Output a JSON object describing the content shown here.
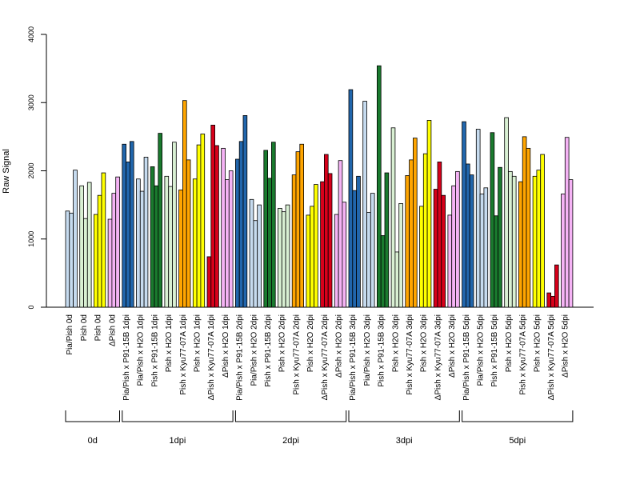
{
  "chart_data": {
    "type": "bar",
    "ylabel": "Raw Signal",
    "ylim": [
      0,
      4000
    ],
    "yticks": [
      0,
      1000,
      2000,
      3000,
      4000
    ],
    "groups": [
      "0d",
      "1dpi",
      "2dpi",
      "3dpi",
      "5dpi"
    ],
    "colors": {
      "Pia/Pish": "#c6dbef",
      "Pia/Pish x P91-15B": "#2166ac",
      "Pia/Pish x H2O": "#c6dbef",
      "Pish x P91-15B": "#1a7a2e",
      "Pish x H2O": "#d9f0d3",
      "Pish x Kyu77-07A": "#ffa500",
      "Pish": "#ffff00",
      "ΔPish x Kyu77-07A": "#d7001a",
      "ΔPish x H2O": "#f5b3f5",
      "Pish 0d": "#d9f0d3"
    },
    "categories": [
      {
        "label": "Pia/Pish 0d",
        "group": "0d",
        "color": "#c6dbef",
        "values": [
          1410,
          1380,
          2010
        ]
      },
      {
        "label": "Pish 0d",
        "group": "0d",
        "color": "#d9f0d3",
        "values": [
          1780,
          1300,
          1830
        ]
      },
      {
        "label": "Pish 0d",
        "group": "0d",
        "color": "#ffff00",
        "values": [
          1360,
          1640,
          1970
        ]
      },
      {
        "label": "ΔPish 0d",
        "group": "0d",
        "color": "#f5b3f5",
        "values": [
          1290,
          1670,
          1910
        ]
      },
      {
        "label": "Pia/Pish x P91-15B 1dpi",
        "group": "1dpi",
        "color": "#2166ac",
        "values": [
          2390,
          2130,
          2430
        ]
      },
      {
        "label": "Pia/Pish x H2O 1dpi",
        "group": "1dpi",
        "color": "#c6dbef",
        "values": [
          1880,
          1700,
          2200
        ]
      },
      {
        "label": "Pish x P91-15B 1dpi",
        "group": "1dpi",
        "color": "#1a7a2e",
        "values": [
          2060,
          1780,
          2550
        ]
      },
      {
        "label": "Pish x H2O 1dpi",
        "group": "1dpi",
        "color": "#d9f0d3",
        "values": [
          1920,
          1770,
          2420
        ]
      },
      {
        "label": "Pish x Kyu77-07A 1dpi",
        "group": "1dpi",
        "color": "#ffa500",
        "values": [
          1720,
          3030,
          2160
        ]
      },
      {
        "label": "Pish x H2O 1dpi",
        "group": "1dpi",
        "color": "#ffff00",
        "values": [
          1880,
          2380,
          2540
        ]
      },
      {
        "label": "ΔPish x Kyu77-07A 1dpi",
        "group": "1dpi",
        "color": "#d7001a",
        "values": [
          740,
          2670,
          2370
        ]
      },
      {
        "label": "ΔPish x H2O 1dpi",
        "group": "1dpi",
        "color": "#f5b3f5",
        "values": [
          2330,
          1870,
          2000
        ]
      },
      {
        "label": "Pia/Pish x P91-15B 2dpi",
        "group": "2dpi",
        "color": "#2166ac",
        "values": [
          2170,
          2430,
          2810
        ]
      },
      {
        "label": "Pia/Pish x H2O 2dpi",
        "group": "2dpi",
        "color": "#c6dbef",
        "values": [
          1580,
          1270,
          1500
        ]
      },
      {
        "label": "Pish x P91-15B 2dpi",
        "group": "2dpi",
        "color": "#1a7a2e",
        "values": [
          2300,
          1890,
          2420
        ]
      },
      {
        "label": "Pish x H2O 2dpi",
        "group": "2dpi",
        "color": "#d9f0d3",
        "values": [
          1450,
          1400,
          1500
        ]
      },
      {
        "label": "Pish x Kyu77-07A 2dpi",
        "group": "2dpi",
        "color": "#ffa500",
        "values": [
          1940,
          2280,
          2390
        ]
      },
      {
        "label": "Pish x H2O 2dpi",
        "group": "2dpi",
        "color": "#ffff00",
        "values": [
          1350,
          1480,
          1800
        ]
      },
      {
        "label": "ΔPish x Kyu77-07A 2dpi",
        "group": "2dpi",
        "color": "#d7001a",
        "values": [
          1840,
          2240,
          1960
        ]
      },
      {
        "label": "ΔPish x H2O 2dpi",
        "group": "2dpi",
        "color": "#f5b3f5",
        "values": [
          1360,
          2150,
          1540
        ]
      },
      {
        "label": "Pia/Pish x P91-15B 3dpi",
        "group": "3dpi",
        "color": "#2166ac",
        "values": [
          3190,
          1710,
          1920
        ]
      },
      {
        "label": "Pia/Pish x H2O 3dpi",
        "group": "3dpi",
        "color": "#c6dbef",
        "values": [
          3020,
          1390,
          1670
        ]
      },
      {
        "label": "Pish x P91-15B 3dpi",
        "group": "3dpi",
        "color": "#1a7a2e",
        "values": [
          3540,
          1050,
          1970
        ]
      },
      {
        "label": "Pish x H2O 3dpi",
        "group": "3dpi",
        "color": "#d9f0d3",
        "values": [
          2630,
          810,
          1520
        ]
      },
      {
        "label": "Pish x Kyu77-07A 3dpi",
        "group": "3dpi",
        "color": "#ffa500",
        "values": [
          1930,
          2160,
          2480
        ]
      },
      {
        "label": "Pish x H2O 3dpi",
        "group": "3dpi",
        "color": "#ffff00",
        "values": [
          1480,
          2250,
          2740
        ]
      },
      {
        "label": "ΔPish x Kyu77-07A 3dpi",
        "group": "3dpi",
        "color": "#d7001a",
        "values": [
          1730,
          2130,
          1640
        ]
      },
      {
        "label": "ΔPish x H2O 3dpi",
        "group": "3dpi",
        "color": "#f5b3f5",
        "values": [
          1350,
          1780,
          1990
        ]
      },
      {
        "label": "Pia/Pish x P91-15B 5dpi",
        "group": "5dpi",
        "color": "#2166ac",
        "values": [
          2720,
          2100,
          1940
        ]
      },
      {
        "label": "Pia/Pish x H2O 5dpi",
        "group": "5dpi",
        "color": "#c6dbef",
        "values": [
          2610,
          1660,
          1750
        ]
      },
      {
        "label": "Pish x P91-15B 5dpi",
        "group": "5dpi",
        "color": "#1a7a2e",
        "values": [
          2560,
          1340,
          2050
        ]
      },
      {
        "label": "Pish x H2O 5dpi",
        "group": "5dpi",
        "color": "#d9f0d3",
        "values": [
          2780,
          1990,
          1920
        ]
      },
      {
        "label": "Pish x Kyu77-07A 5dpi",
        "group": "5dpi",
        "color": "#ffa500",
        "values": [
          1840,
          2500,
          2330
        ]
      },
      {
        "label": "Pish x H2O 5dpi",
        "group": "5dpi",
        "color": "#ffff00",
        "values": [
          1920,
          2010,
          2240
        ]
      },
      {
        "label": "ΔPish x Kyu77-07A 5dpi",
        "group": "5dpi",
        "color": "#d7001a",
        "values": [
          210,
          160,
          620
        ]
      },
      {
        "label": "ΔPish x H2O 5dpi",
        "group": "5dpi",
        "color": "#f5b3f5",
        "values": [
          1660,
          2490,
          1870
        ]
      }
    ]
  }
}
